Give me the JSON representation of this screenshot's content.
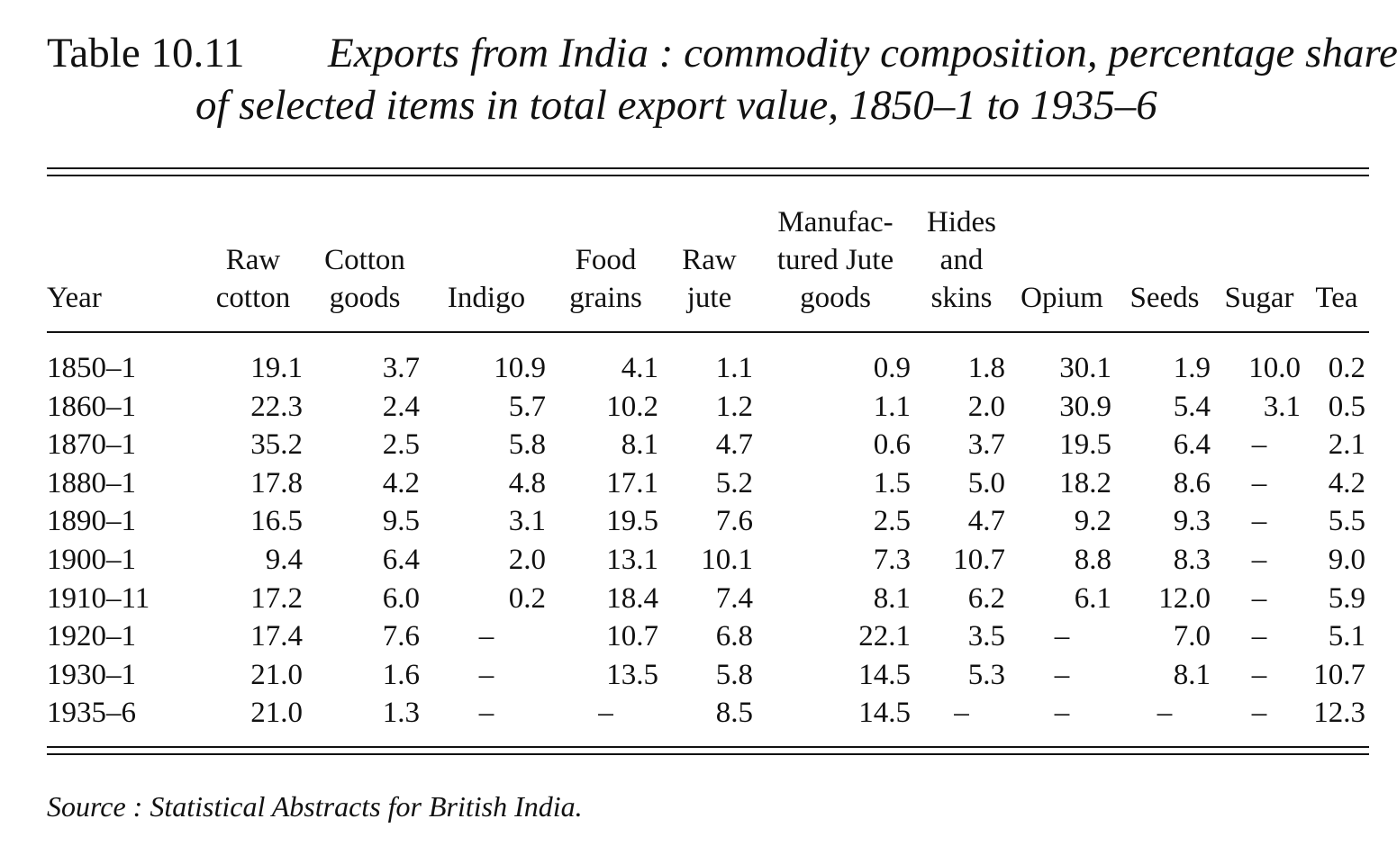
{
  "caption": {
    "label": "Table  10.11",
    "title_line1": "Exports from India : commodity composition, percentage share",
    "title_line2": "of selected items in total export value, 1850–1 to 1935–6"
  },
  "table": {
    "headers": [
      [
        "Year"
      ],
      [
        "Raw",
        "cotton"
      ],
      [
        "Cotton",
        "goods"
      ],
      [
        "Indigo"
      ],
      [
        "Food",
        "grains"
      ],
      [
        "Raw",
        "jute"
      ],
      [
        "Manufac-",
        "tured Jute",
        "goods"
      ],
      [
        "Hides",
        "and",
        "skins"
      ],
      [
        "Opium"
      ],
      [
        "Seeds"
      ],
      [
        "Sugar"
      ],
      [
        "Tea"
      ]
    ],
    "rows": [
      [
        "1850–1",
        "19.1",
        "3.7",
        "10.9",
        "4.1",
        "1.1",
        "0.9",
        "1.8",
        "30.1",
        "1.9",
        "10.0",
        "0.2"
      ],
      [
        "1860–1",
        "22.3",
        "2.4",
        "5.7",
        "10.2",
        "1.2",
        "1.1",
        "2.0",
        "30.9",
        "5.4",
        "3.1",
        "0.5"
      ],
      [
        "1870–1",
        "35.2",
        "2.5",
        "5.8",
        "8.1",
        "4.7",
        "0.6",
        "3.7",
        "19.5",
        "6.4",
        "–",
        "2.1"
      ],
      [
        "1880–1",
        "17.8",
        "4.2",
        "4.8",
        "17.1",
        "5.2",
        "1.5",
        "5.0",
        "18.2",
        "8.6",
        "–",
        "4.2"
      ],
      [
        "1890–1",
        "16.5",
        "9.5",
        "3.1",
        "19.5",
        "7.6",
        "2.5",
        "4.7",
        "9.2",
        "9.3",
        "–",
        "5.5"
      ],
      [
        "1900–1",
        "9.4",
        "6.4",
        "2.0",
        "13.1",
        "10.1",
        "7.3",
        "10.7",
        "8.8",
        "8.3",
        "–",
        "9.0"
      ],
      [
        "1910–11",
        "17.2",
        "6.0",
        "0.2",
        "18.4",
        "7.4",
        "8.1",
        "6.2",
        "6.1",
        "12.0",
        "–",
        "5.9"
      ],
      [
        "1920–1",
        "17.4",
        "7.6",
        "–",
        "10.7",
        "6.8",
        "22.1",
        "3.5",
        "–",
        "7.0",
        "–",
        "5.1"
      ],
      [
        "1930–1",
        "21.0",
        "1.6",
        "–",
        "13.5",
        "5.8",
        "14.5",
        "5.3",
        "–",
        "8.1",
        "–",
        "10.7"
      ],
      [
        "1935–6",
        "21.0",
        "1.3",
        "–",
        "–",
        "8.5",
        "14.5",
        "–",
        "–",
        "–",
        "–",
        "12.3"
      ]
    ]
  },
  "source": "Source :  Statistical Abstracts for British India."
}
